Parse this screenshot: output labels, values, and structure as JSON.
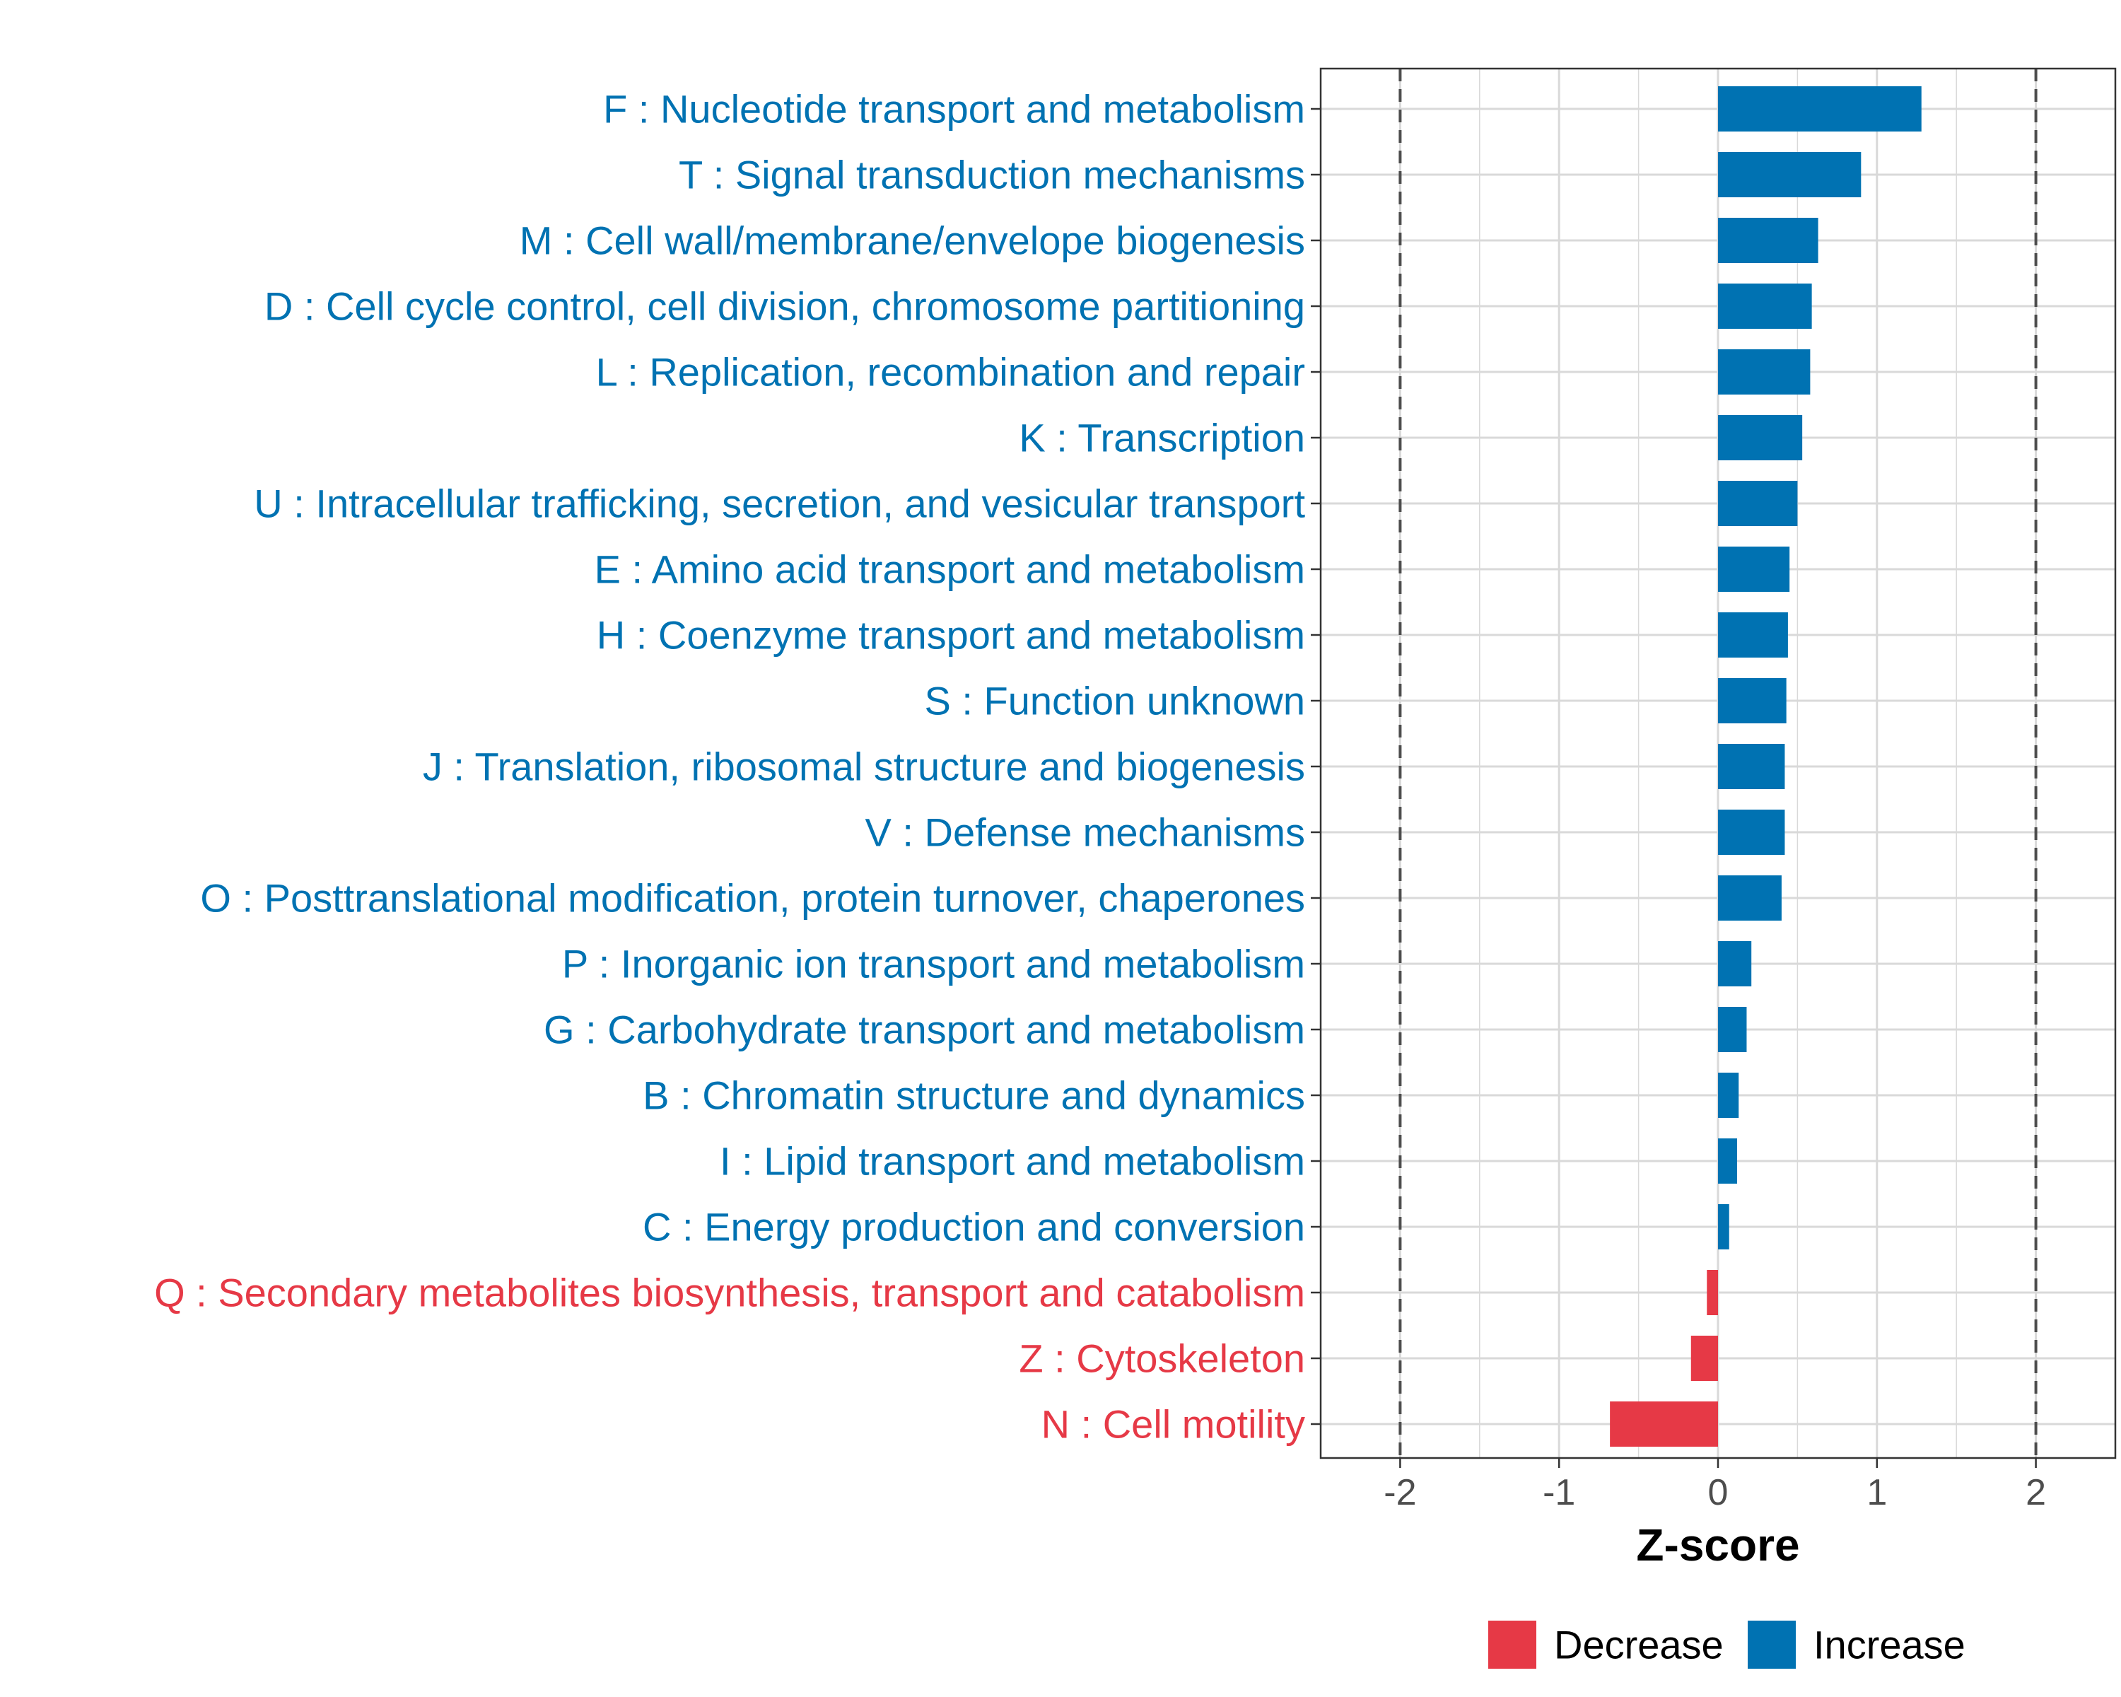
{
  "colors": {
    "increase": "#0072b2",
    "decrease": "#e63946",
    "grid": "#d9d9d9",
    "reference_line": "#4d4d4d",
    "tick_text": "#4d4d4d"
  },
  "chart_data": {
    "type": "bar",
    "orientation": "horizontal",
    "xlabel": "Z-score",
    "xlim": [
      -2.5,
      2.5
    ],
    "xticks": [
      -2,
      -1,
      0,
      1,
      2
    ],
    "xtick_labels": [
      "-2",
      "-1",
      "0",
      "1",
      "2"
    ],
    "reference_lines": [
      -2,
      2
    ],
    "grid": true,
    "legend_position": "bottom",
    "legend": [
      {
        "name": "Decrease",
        "color_key": "decrease"
      },
      {
        "name": "Increase",
        "color_key": "increase"
      }
    ],
    "categories": [
      "F : Nucleotide transport and metabolism",
      "T : Signal transduction mechanisms",
      "M : Cell wall/membrane/envelope biogenesis",
      "D : Cell cycle control, cell division, chromosome partitioning",
      "L : Replication, recombination and repair",
      "K : Transcription",
      "U : Intracellular trafficking, secretion, and vesicular transport",
      "E : Amino acid transport and metabolism",
      "H : Coenzyme transport and metabolism",
      "S : Function unknown",
      "J : Translation, ribosomal structure and biogenesis",
      "V : Defense mechanisms",
      "O : Posttranslational modification, protein turnover, chaperones",
      "P : Inorganic ion transport and metabolism",
      "G : Carbohydrate transport and metabolism",
      "B : Chromatin structure and dynamics",
      "I : Lipid transport and metabolism",
      "C : Energy production and conversion",
      "Q : Secondary metabolites biosynthesis, transport and catabolism",
      "Z : Cytoskeleton",
      "N : Cell motility"
    ],
    "values": [
      1.28,
      0.9,
      0.63,
      0.59,
      0.58,
      0.53,
      0.5,
      0.45,
      0.44,
      0.43,
      0.42,
      0.42,
      0.4,
      0.21,
      0.18,
      0.13,
      0.12,
      0.07,
      -0.07,
      -0.17,
      -0.68
    ],
    "groups": [
      "Increase",
      "Increase",
      "Increase",
      "Increase",
      "Increase",
      "Increase",
      "Increase",
      "Increase",
      "Increase",
      "Increase",
      "Increase",
      "Increase",
      "Increase",
      "Increase",
      "Increase",
      "Increase",
      "Increase",
      "Increase",
      "Decrease",
      "Decrease",
      "Decrease"
    ]
  }
}
